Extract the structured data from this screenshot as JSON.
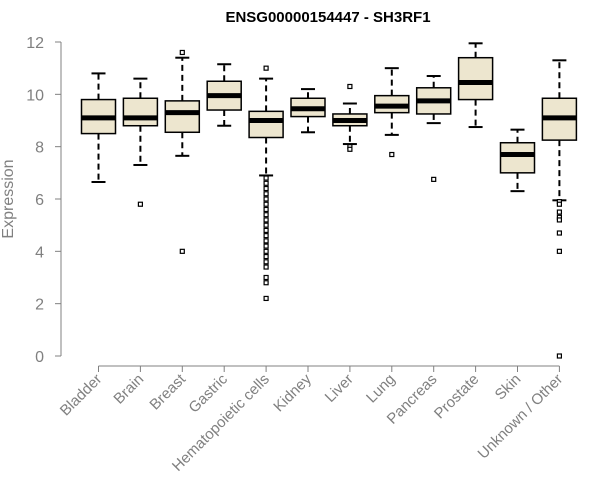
{
  "chart_data": {
    "type": "boxplot",
    "title": "ENSG00000154447 - SH3RF1",
    "xlabel": "",
    "ylabel": "Expression",
    "ylim": [
      0,
      12
    ],
    "yticks": [
      0,
      2,
      4,
      6,
      8,
      10,
      12
    ],
    "grid": false,
    "box_fill": "#ede6cf",
    "categories": [
      "Bladder",
      "Brain",
      "Breast",
      "Gastric",
      "Hematopoietic cells",
      "Kidney",
      "Liver",
      "Lung",
      "Pancreas",
      "Prostate",
      "Skin",
      "Unknown / Other"
    ],
    "boxes": [
      {
        "name": "Bladder",
        "whisker_low": 6.65,
        "q1": 8.5,
        "median": 9.1,
        "q3": 9.8,
        "whisker_high": 10.8,
        "outliers": []
      },
      {
        "name": "Brain",
        "whisker_low": 7.3,
        "q1": 8.8,
        "median": 9.1,
        "q3": 9.85,
        "whisker_high": 10.6,
        "outliers": [
          5.8
        ]
      },
      {
        "name": "Breast",
        "whisker_low": 7.65,
        "q1": 8.55,
        "median": 9.3,
        "q3": 9.75,
        "whisker_high": 11.4,
        "outliers": [
          11.6,
          4.0
        ]
      },
      {
        "name": "Gastric",
        "whisker_low": 8.8,
        "q1": 9.4,
        "median": 9.95,
        "q3": 10.5,
        "whisker_high": 11.15,
        "outliers": []
      },
      {
        "name": "Hematopoietic cells",
        "whisker_low": 6.9,
        "q1": 8.35,
        "median": 9.0,
        "q3": 9.35,
        "whisker_high": 10.6,
        "outliers": [
          11.0,
          6.8,
          6.6,
          6.4,
          6.2,
          6.0,
          5.8,
          5.6,
          5.4,
          5.2,
          5.0,
          4.8,
          4.6,
          4.4,
          4.2,
          4.0,
          3.8,
          3.6,
          3.4,
          3.0,
          2.8,
          2.2
        ]
      },
      {
        "name": "Kidney",
        "whisker_low": 8.55,
        "q1": 9.15,
        "median": 9.45,
        "q3": 9.85,
        "whisker_high": 10.2,
        "outliers": []
      },
      {
        "name": "Liver",
        "whisker_low": 8.1,
        "q1": 8.8,
        "median": 9.0,
        "q3": 9.25,
        "whisker_high": 9.65,
        "outliers": [
          10.3,
          8.0,
          7.9
        ]
      },
      {
        "name": "Lung",
        "whisker_low": 8.45,
        "q1": 9.3,
        "median": 9.55,
        "q3": 9.95,
        "whisker_high": 11.0,
        "outliers": [
          7.7
        ]
      },
      {
        "name": "Pancreas",
        "whisker_low": 8.9,
        "q1": 9.25,
        "median": 9.75,
        "q3": 10.25,
        "whisker_high": 10.7,
        "outliers": [
          6.75
        ]
      },
      {
        "name": "Prostate",
        "whisker_low": 8.75,
        "q1": 9.8,
        "median": 10.45,
        "q3": 11.4,
        "whisker_high": 11.95,
        "outliers": []
      },
      {
        "name": "Skin",
        "whisker_low": 6.3,
        "q1": 7.0,
        "median": 7.7,
        "q3": 8.15,
        "whisker_high": 8.65,
        "outliers": []
      },
      {
        "name": "Unknown / Other",
        "whisker_low": 5.95,
        "q1": 8.25,
        "median": 9.1,
        "q3": 9.85,
        "whisker_high": 11.3,
        "outliers": [
          5.9,
          5.8,
          5.5,
          5.3,
          5.2,
          4.7,
          4.0,
          0.0
        ]
      }
    ]
  }
}
